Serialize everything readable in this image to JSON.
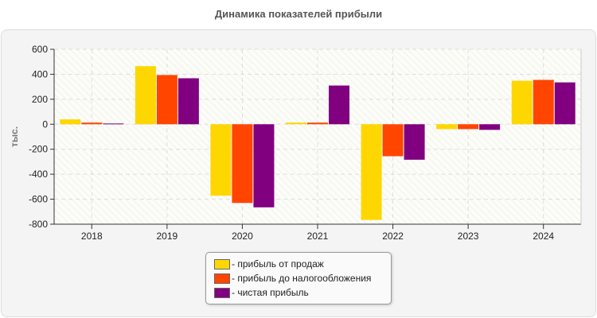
{
  "chart_data": {
    "type": "bar",
    "title": "Динамика показателей прибыли",
    "ylabel": "тыс.",
    "xlabel": "",
    "categories": [
      "2018",
      "2019",
      "2020",
      "2021",
      "2022",
      "2023",
      "2024"
    ],
    "ylim": [
      -800,
      600
    ],
    "yticks": [
      600,
      400,
      200,
      0,
      -200,
      -400,
      -600,
      -800
    ],
    "grid": true,
    "legend_position": "bottom",
    "series": [
      {
        "name": "- прибыль от продаж",
        "color": "#FFD700",
        "values": [
          39,
          465,
          -572,
          13,
          -766,
          -39,
          348
        ]
      },
      {
        "name": "- прибыль до налогообложения",
        "color": "#FF4500",
        "values": [
          13,
          394,
          -630,
          13,
          -256,
          -39,
          355
        ]
      },
      {
        "name": "- чистая прибыль",
        "color": "#800080",
        "values": [
          6,
          368,
          -665,
          310,
          -284,
          -45,
          335
        ]
      }
    ]
  }
}
